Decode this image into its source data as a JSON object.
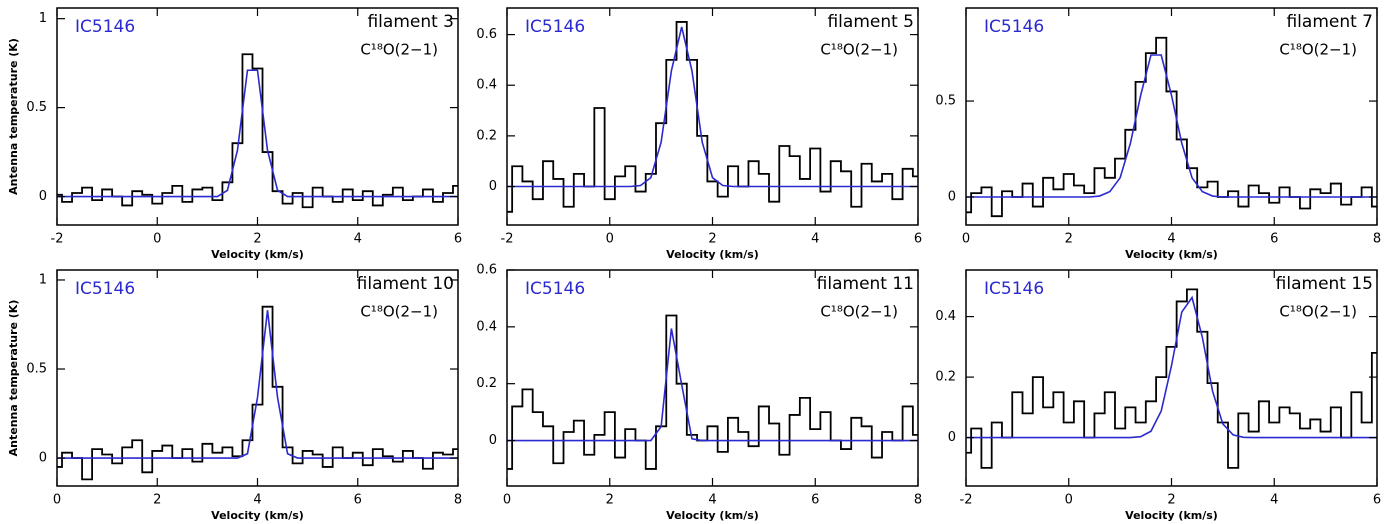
{
  "chart_data": [
    {
      "type": "line",
      "annotation": "IC5146",
      "annotation_color": "#2a2ad0",
      "title": "filament 3",
      "subtitle": "C¹⁸O(2−1)",
      "x_label": "Velocity (km/s)",
      "y_label": "Antenna temperature (K)",
      "xlim": [
        -2,
        6
      ],
      "ylim": [
        -0.16,
        1.06
      ],
      "xticks": [
        -2,
        0,
        2,
        4,
        6
      ],
      "yticks": [
        0,
        0.5,
        1
      ],
      "x": [
        -2,
        -1.8,
        -1.6,
        -1.4,
        -1.2,
        -1,
        -0.8,
        -0.6,
        -0.4,
        -0.2,
        0,
        0.2,
        0.4,
        0.6,
        0.8,
        1,
        1.2,
        1.4,
        1.6,
        1.8,
        2,
        2.2,
        2.4,
        2.6,
        2.8,
        3,
        3.2,
        3.4,
        3.6,
        3.8,
        4,
        4.2,
        4.4,
        4.6,
        4.8,
        5,
        5.2,
        5.4,
        5.6,
        5.8,
        6
      ],
      "series": [
        {
          "color": "#000000",
          "step": true,
          "values": [
            0.01,
            -0.03,
            0.02,
            0.05,
            -0.02,
            0.04,
            0.0,
            -0.05,
            0.03,
            0.01,
            -0.04,
            0.02,
            0.06,
            -0.03,
            0.04,
            0.05,
            -0.02,
            0.08,
            0.3,
            0.8,
            0.72,
            0.25,
            0.03,
            -0.04,
            0.02,
            -0.06,
            0.05,
            0.0,
            -0.03,
            0.04,
            -0.02,
            0.03,
            -0.05,
            0.01,
            0.05,
            -0.02,
            0.0,
            0.04,
            -0.03,
            0.02,
            0.06
          ]
        },
        {
          "color": "#2a2ad0",
          "step": false,
          "values": [
            0,
            0,
            0,
            0,
            0,
            0,
            0,
            0,
            0,
            0,
            0,
            0,
            0,
            0,
            0,
            0,
            0,
            0.035,
            0.26,
            0.71,
            0.71,
            0.26,
            0.035,
            0,
            0,
            0,
            0,
            0,
            0,
            0,
            0,
            0,
            0,
            0,
            0,
            0,
            0,
            0,
            0,
            0,
            0
          ]
        }
      ]
    },
    {
      "type": "line",
      "annotation": "IC5146",
      "annotation_color": "#2a2ad0",
      "title": "filament 5",
      "subtitle": "C¹⁸O(2−1)",
      "x_label": "Velocity (km/s)",
      "xlim": [
        -2,
        6
      ],
      "ylim": [
        -0.152,
        0.705
      ],
      "xticks": [
        -2,
        0,
        2,
        4,
        6
      ],
      "yticks": [
        0,
        0.2,
        0.4,
        0.6
      ],
      "x": [
        -2,
        -1.8,
        -1.6,
        -1.4,
        -1.2,
        -1,
        -0.8,
        -0.6,
        -0.4,
        -0.2,
        0,
        0.2,
        0.4,
        0.6,
        0.8,
        1,
        1.2,
        1.4,
        1.6,
        1.8,
        2,
        2.2,
        2.4,
        2.6,
        2.8,
        3,
        3.2,
        3.4,
        3.6,
        3.8,
        4,
        4.2,
        4.4,
        4.6,
        4.8,
        5,
        5.2,
        5.4,
        5.6,
        5.8,
        6
      ],
      "series": [
        {
          "color": "#000000",
          "step": true,
          "values": [
            -0.1,
            0.08,
            0.02,
            -0.05,
            0.1,
            0.03,
            -0.08,
            0.05,
            0.0,
            0.31,
            -0.05,
            0.04,
            0.08,
            -0.02,
            0.05,
            0.25,
            0.5,
            0.65,
            0.5,
            0.2,
            0.02,
            -0.04,
            0.08,
            0.0,
            0.1,
            0.05,
            -0.06,
            0.16,
            0.12,
            0.03,
            0.15,
            -0.02,
            0.1,
            0.06,
            -0.08,
            0.09,
            0.02,
            0.05,
            -0.05,
            0.07,
            0.04
          ]
        },
        {
          "color": "#2a2ad0",
          "step": false,
          "values": [
            0,
            0,
            0,
            0,
            0,
            0,
            0,
            0,
            0,
            0,
            0,
            0,
            0,
            0.004,
            0.035,
            0.175,
            0.457,
            0.63,
            0.457,
            0.175,
            0.035,
            0.004,
            0,
            0,
            0,
            0,
            0,
            0,
            0,
            0,
            0,
            0,
            0,
            0,
            0,
            0,
            0,
            0,
            0,
            0,
            0
          ]
        }
      ]
    },
    {
      "type": "line",
      "annotation": "IC5146",
      "annotation_color": "#2a2ad0",
      "title": "filament 7",
      "subtitle": "C¹⁸O(2−1)",
      "x_label": "Velocity (km/s)",
      "xlim": [
        0,
        8
      ],
      "ylim": [
        -0.146,
        0.985
      ],
      "xticks": [
        0,
        2,
        4,
        6,
        8
      ],
      "yticks": [
        0,
        0.5
      ],
      "x": [
        0,
        0.2,
        0.4,
        0.6,
        0.8,
        1,
        1.2,
        1.4,
        1.6,
        1.8,
        2,
        2.2,
        2.4,
        2.6,
        2.8,
        3,
        3.2,
        3.4,
        3.6,
        3.8,
        4,
        4.2,
        4.4,
        4.6,
        4.8,
        5,
        5.2,
        5.4,
        5.6,
        5.8,
        6,
        6.2,
        6.4,
        6.6,
        6.8,
        7,
        7.2,
        7.4,
        7.6,
        7.8,
        8
      ],
      "series": [
        {
          "color": "#000000",
          "step": true,
          "values": [
            -0.08,
            0.02,
            0.05,
            -0.1,
            0.03,
            0.0,
            0.07,
            -0.05,
            0.1,
            0.04,
            0.12,
            0.06,
            0.02,
            0.15,
            0.1,
            0.2,
            0.35,
            0.6,
            0.75,
            0.83,
            0.55,
            0.3,
            0.15,
            0.05,
            0.08,
            0.0,
            0.03,
            -0.05,
            0.06,
            0.02,
            -0.03,
            0.05,
            0.0,
            -0.06,
            0.04,
            0.02,
            0.07,
            -0.04,
            0.0,
            0.05,
            -0.05
          ]
        },
        {
          "color": "#2a2ad0",
          "step": false,
          "values": [
            0,
            0,
            0,
            0,
            0,
            0,
            0,
            0,
            0,
            0,
            0,
            0,
            0,
            0.005,
            0.028,
            0.1,
            0.28,
            0.53,
            0.74,
            0.74,
            0.53,
            0.28,
            0.1,
            0.028,
            0.005,
            0,
            0,
            0,
            0,
            0,
            0,
            0,
            0,
            0,
            0,
            0,
            0,
            0,
            0,
            0,
            0
          ]
        }
      ]
    },
    {
      "type": "line",
      "annotation": "IC5146",
      "annotation_color": "#2a2ad0",
      "title": "filament 10",
      "subtitle": "C¹⁸O(2−1)",
      "x_label": "Velocity (km/s)",
      "y_label": "Antenna temperature (K)",
      "xlim": [
        0,
        8
      ],
      "ylim": [
        -0.157,
        1.056
      ],
      "xticks": [
        0,
        2,
        4,
        6,
        8
      ],
      "yticks": [
        0,
        0.5,
        1
      ],
      "x": [
        0,
        0.2,
        0.4,
        0.6,
        0.8,
        1,
        1.2,
        1.4,
        1.6,
        1.8,
        2,
        2.2,
        2.4,
        2.6,
        2.8,
        3,
        3.2,
        3.4,
        3.6,
        3.8,
        4,
        4.2,
        4.4,
        4.6,
        4.8,
        5,
        5.2,
        5.4,
        5.6,
        5.8,
        6,
        6.2,
        6.4,
        6.6,
        6.8,
        7,
        7.2,
        7.4,
        7.6,
        7.8,
        8
      ],
      "series": [
        {
          "color": "#000000",
          "step": true,
          "values": [
            -0.05,
            0.03,
            0.0,
            -0.12,
            0.05,
            0.02,
            -0.03,
            0.06,
            0.1,
            -0.08,
            0.04,
            0.07,
            0.0,
            0.05,
            -0.02,
            0.08,
            0.03,
            0.06,
            0.01,
            0.1,
            0.3,
            0.85,
            0.4,
            0.06,
            -0.03,
            0.04,
            0.02,
            -0.05,
            0.06,
            0.0,
            0.03,
            -0.04,
            0.05,
            0.01,
            -0.02,
            0.04,
            0.0,
            -0.06,
            0.03,
            0.02,
            0.05
          ]
        },
        {
          "color": "#2a2ad0",
          "step": false,
          "values": [
            0,
            0,
            0,
            0,
            0,
            0,
            0,
            0,
            0,
            0,
            0,
            0,
            0,
            0,
            0,
            0,
            0,
            0,
            0,
            0.024,
            0.34,
            0.83,
            0.34,
            0.024,
            0,
            0,
            0,
            0,
            0,
            0,
            0,
            0,
            0,
            0,
            0,
            0,
            0,
            0,
            0,
            0,
            0
          ]
        }
      ]
    },
    {
      "type": "line",
      "annotation": "IC5146",
      "annotation_color": "#2a2ad0",
      "title": "filament 11",
      "subtitle": "C¹⁸O(2−1)",
      "x_label": "Velocity (km/s)",
      "xlim": [
        0,
        8
      ],
      "ylim": [
        -0.16,
        0.6
      ],
      "xticks": [
        0,
        2,
        4,
        6,
        8
      ],
      "yticks": [
        0,
        0.2,
        0.4,
        0.6
      ],
      "x": [
        0,
        0.2,
        0.4,
        0.6,
        0.8,
        1,
        1.2,
        1.4,
        1.6,
        1.8,
        2,
        2.2,
        2.4,
        2.6,
        2.8,
        3,
        3.2,
        3.4,
        3.6,
        3.8,
        4,
        4.2,
        4.4,
        4.6,
        4.8,
        5,
        5.2,
        5.4,
        5.6,
        5.8,
        6,
        6.2,
        6.4,
        6.6,
        6.8,
        7,
        7.2,
        7.4,
        7.6,
        7.8,
        8
      ],
      "series": [
        {
          "color": "#000000",
          "step": true,
          "values": [
            -0.1,
            0.12,
            0.18,
            0.1,
            0.05,
            -0.08,
            0.03,
            0.07,
            -0.05,
            0.02,
            0.1,
            -0.06,
            0.04,
            0.0,
            -0.1,
            0.05,
            0.44,
            0.2,
            0.02,
            0.0,
            0.05,
            -0.04,
            0.08,
            0.03,
            -0.02,
            0.12,
            0.06,
            -0.05,
            0.09,
            0.15,
            0.04,
            0.1,
            0.0,
            -0.03,
            0.08,
            0.05,
            -0.06,
            0.03,
            0.0,
            0.12,
            0.02
          ]
        },
        {
          "color": "#2a2ad0",
          "step": false,
          "values": [
            0,
            0,
            0,
            0,
            0,
            0,
            0,
            0,
            0,
            0,
            0,
            0,
            0,
            0,
            0,
            0.049,
            0.394,
            0.197,
            0.006,
            0,
            0,
            0,
            0,
            0,
            0,
            0,
            0,
            0,
            0,
            0,
            0,
            0,
            0,
            0,
            0,
            0,
            0,
            0,
            0,
            0,
            0
          ]
        }
      ]
    },
    {
      "type": "line",
      "annotation": "IC5146",
      "annotation_color": "#2a2ad0",
      "title": "filament 15",
      "subtitle": "C¹⁸O(2−1)",
      "x_label": "Velocity (km/s)",
      "xlim": [
        -2,
        6
      ],
      "ylim": [
        -0.16,
        0.554
      ],
      "xticks": [
        -2,
        0,
        2,
        4,
        6
      ],
      "yticks": [
        0,
        0.2,
        0.4
      ],
      "x": [
        -2,
        -1.8,
        -1.6,
        -1.4,
        -1.2,
        -1,
        -0.8,
        -0.6,
        -0.4,
        -0.2,
        0,
        0.2,
        0.4,
        0.6,
        0.8,
        1,
        1.2,
        1.4,
        1.6,
        1.8,
        2,
        2.2,
        2.4,
        2.6,
        2.8,
        3,
        3.2,
        3.4,
        3.6,
        3.8,
        4,
        4.2,
        4.4,
        4.6,
        4.8,
        5,
        5.2,
        5.4,
        5.6,
        5.8,
        6
      ],
      "series": [
        {
          "color": "#000000",
          "step": true,
          "values": [
            -0.05,
            0.03,
            -0.1,
            0.05,
            0.0,
            0.15,
            0.08,
            0.2,
            0.1,
            0.15,
            0.05,
            0.12,
            0.0,
            0.08,
            0.15,
            0.03,
            0.1,
            0.05,
            0.12,
            0.2,
            0.3,
            0.45,
            0.49,
            0.35,
            0.18,
            0.05,
            -0.1,
            0.08,
            0.02,
            0.12,
            0.05,
            0.1,
            0.08,
            0.03,
            0.06,
            0.02,
            0.1,
            0.0,
            0.15,
            0.05,
            0.28
          ]
        },
        {
          "color": "#2a2ad0",
          "step": false,
          "values": [
            0,
            0,
            0,
            0,
            0,
            0,
            0,
            0,
            0,
            0,
            0,
            0,
            0,
            0,
            0,
            0,
            0,
            0.003,
            0.021,
            0.088,
            0.238,
            0.415,
            0.463,
            0.332,
            0.153,
            0.045,
            0.009,
            0.001,
            0,
            0,
            0,
            0,
            0,
            0,
            0,
            0,
            0,
            0,
            0,
            0,
            0
          ]
        }
      ]
    }
  ]
}
